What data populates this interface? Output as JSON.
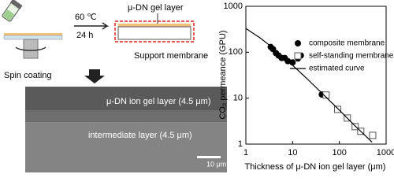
{
  "diagram": {
    "temperature": "60 ℃",
    "time": "24 h",
    "top_layer": "μ-DN gel layer",
    "support": "Support membrane",
    "step": "Spin coating"
  },
  "sem": {
    "layer1": "μ-DN ion gel layer (4.5 μm)",
    "layer2": "intermediate layer (4.5 μm)",
    "scale": "10 μm"
  },
  "chart_data": {
    "type": "scatter",
    "x_label": "Thickness of μ-DN ion gel layer (μm)",
    "y_label": "CO₂ permeance (GPU)",
    "xlog": true,
    "ylog": true,
    "xlim": [
      1,
      1000
    ],
    "ylim": [
      1,
      1000
    ],
    "xticks": [
      1,
      10,
      100,
      1000
    ],
    "yticks": [
      1,
      10,
      100,
      1000
    ],
    "grid": false,
    "legend": "upper right",
    "series": [
      {
        "name": "composite membrane",
        "marker": "filled-circle",
        "color": "#000000",
        "x": [
          3.4,
          3.8,
          4.4,
          5.0,
          5.8,
          6.8,
          7.9,
          10,
          13,
          15,
          42
        ],
        "values": [
          130,
          117,
          96,
          85,
          75,
          75,
          64,
          60,
          73,
          85,
          12
        ]
      },
      {
        "name": "self-standing membrane",
        "marker": "open-square",
        "color": "#555555",
        "x": [
          52,
          92,
          148,
          218,
          287,
          516
        ],
        "values": [
          11.7,
          5.7,
          3.7,
          2.4,
          1.9,
          1.55
        ]
      },
      {
        "name": "estimated curve",
        "marker": "line",
        "color": "#000000",
        "x": [
          1,
          2,
          3,
          5,
          10,
          20,
          50,
          100,
          200,
          500
        ],
        "values": [
          330,
          206,
          150,
          97,
          52,
          27,
          10.9,
          5.5,
          2.7,
          1.1
        ]
      }
    ]
  }
}
